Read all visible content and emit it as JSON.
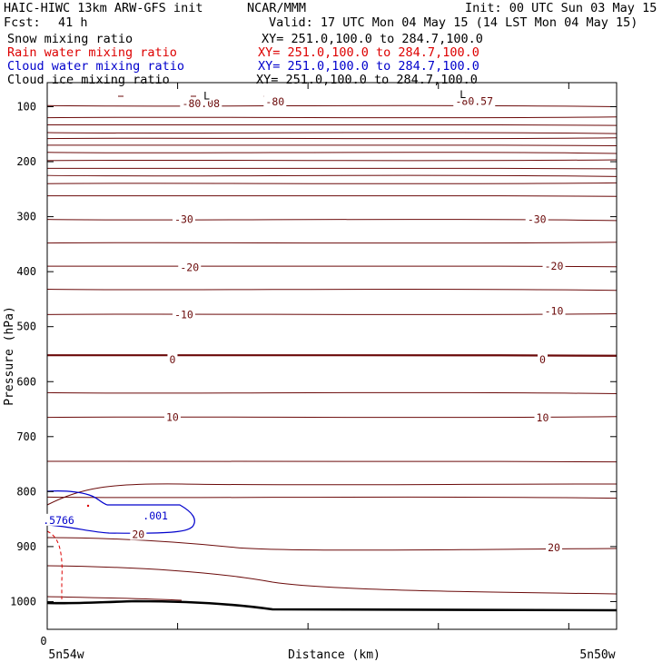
{
  "header": {
    "title": "HAIC-HIWC 13km ARW-GFS init",
    "org": "NCAR/MMM",
    "init": "Init: 00 UTC Sun 03 May 15",
    "fcst_label": "Fcst:",
    "fcst_value": "41 h",
    "valid": "Valid: 17 UTC Mon 04 May 15 (14 LST Mon 04 May 15)"
  },
  "fields": [
    {
      "name": "Snow mixing ratio",
      "range": "XY= 251.0,100.0 to 284.7,100.0",
      "color": "#000000"
    },
    {
      "name": "Rain water mixing ratio",
      "range": "XY= 251.0,100.0 to 284.7,100.0",
      "color": "#dd0000"
    },
    {
      "name": "Cloud water mixing ratio",
      "range": "XY= 251.0,100.0 to 284.7,100.0",
      "color": "#0000cc"
    },
    {
      "name": "Cloud ice mixing ratio",
      "range": "XY= 251.0,100.0 to 284.7,100.0",
      "color": "#000000"
    }
  ],
  "chart_data": {
    "type": "line",
    "ylabel": "Pressure (hPa)",
    "xlabel": "Distance (km)",
    "x_origin_label": "0",
    "x_left_label": "5n54w",
    "x_right_label": "5n50w",
    "y_ticks": [
      100,
      200,
      300,
      400,
      500,
      600,
      700,
      800,
      900,
      1000
    ],
    "ylim": [
      1050,
      65
    ],
    "xlim": [
      0,
      100
    ],
    "temperature_contours": {
      "color": "#6b0a0a",
      "labels": [
        {
          "text": "-30",
          "x": 24,
          "p": 305
        },
        {
          "text": "-30",
          "x": 86,
          "p": 305
        },
        {
          "text": "-20",
          "x": 25,
          "p": 392
        },
        {
          "text": "-20",
          "x": 89,
          "p": 390
        },
        {
          "text": "-10",
          "x": 24,
          "p": 478
        },
        {
          "text": "-10",
          "x": 89,
          "p": 472
        },
        {
          "text": "0",
          "x": 22,
          "p": 560
        },
        {
          "text": "0",
          "x": 87,
          "p": 560
        },
        {
          "text": "10",
          "x": 22,
          "p": 665
        },
        {
          "text": "10",
          "x": 87,
          "p": 666
        },
        {
          "text": "20",
          "x": 16,
          "p": 878
        },
        {
          "text": "20",
          "x": 89,
          "p": 902
        }
      ],
      "low_markers": [
        {
          "text": "L",
          "x": 28,
          "p": 80
        },
        {
          "text": "L",
          "x": 73,
          "p": 78
        }
      ],
      "extrema_labels": [
        {
          "text": "-80.08",
          "x": 27,
          "p": 94
        },
        {
          "text": "-80",
          "x": 40,
          "p": 91
        },
        {
          "text": "-80.57",
          "x": 75,
          "p": 90
        }
      ]
    },
    "cloud_water": {
      "color": "#0000cc",
      "labels": [
        {
          "text": ".001",
          "x": 19,
          "p": 844
        },
        {
          "text": ".5766",
          "x": 2,
          "p": 852
        }
      ]
    }
  }
}
